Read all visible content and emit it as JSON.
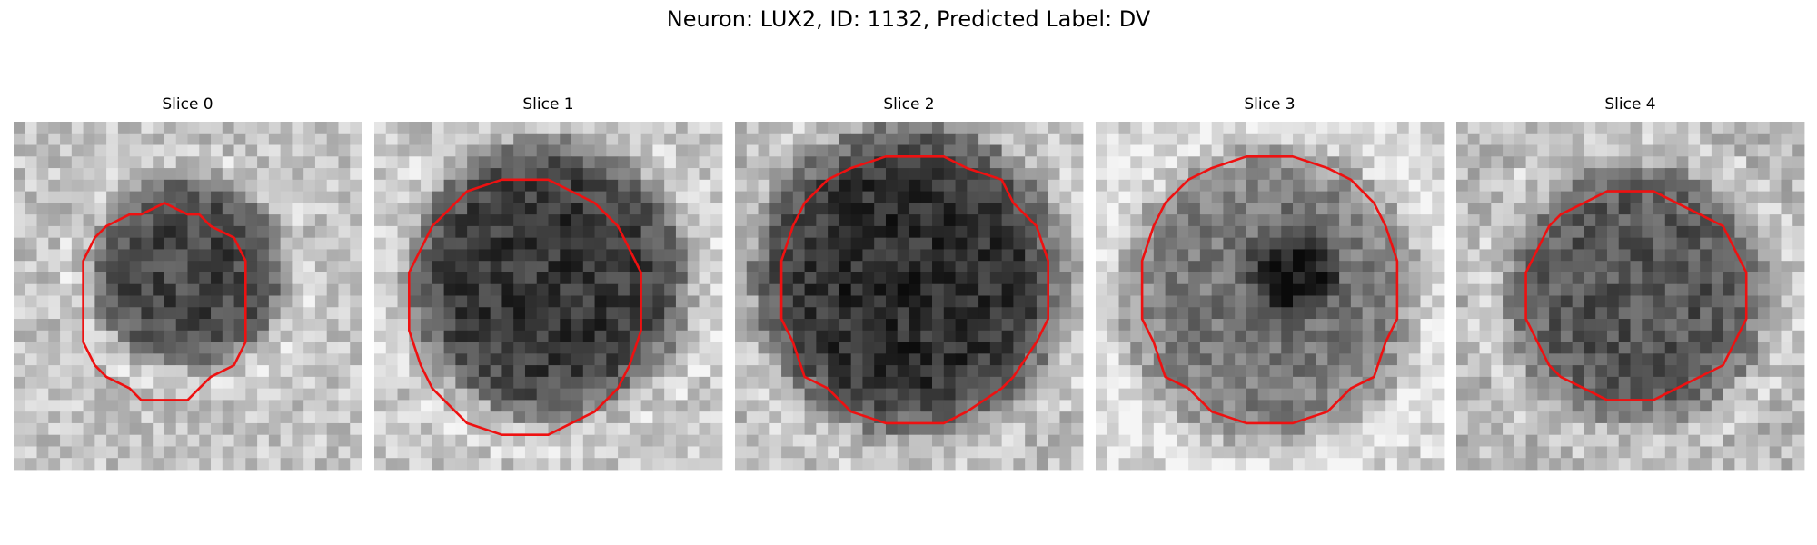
{
  "title": "Neuron: LUX2, ID: 1132, Predicted Label: DV",
  "panels": [
    {
      "title": "Slice 0"
    },
    {
      "title": "Slice 1"
    },
    {
      "title": "Slice 2"
    },
    {
      "title": "Slice 3"
    },
    {
      "title": "Slice 4"
    }
  ]
}
